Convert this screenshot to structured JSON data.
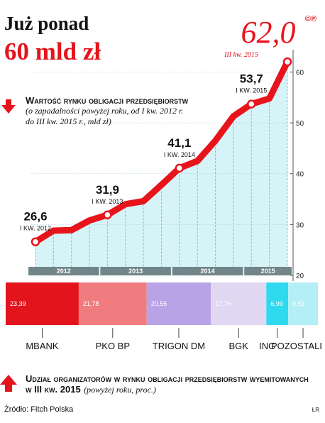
{
  "title": "Już ponad",
  "subtitle": "60 mld zł",
  "logo": "©℗",
  "source": "Źródło: Fitch Polska",
  "credit": "ŁR",
  "chart_data": [
    {
      "type": "line",
      "title": "Wartość rynku obligacji przedsiębiorstw",
      "subtitle": "(o zapadalności powyżej roku, od I kw. 2012 r. do III kw. 2015 r., mld zł)",
      "categories": [
        "I KW. 2012",
        null,
        null,
        null,
        "I KW. 2013",
        null,
        null,
        null,
        "I KW. 2014",
        null,
        null,
        null,
        "I KW. 2015",
        null,
        "III kw. 2015"
      ],
      "values": [
        26.6,
        28.8,
        28.9,
        30.8,
        31.9,
        34.0,
        34.6,
        37.8,
        41.1,
        42.5,
        46.5,
        51.3,
        53.7,
        54.8,
        62.0
      ],
      "value_labels": [
        "26,6",
        null,
        null,
        null,
        "31,9",
        null,
        null,
        null,
        "41,1",
        null,
        null,
        null,
        "53,7",
        null,
        "62,0"
      ],
      "color": "#e8141c",
      "fill": "#d6f3f7",
      "ylim": [
        20,
        63
      ],
      "yticks": [
        20,
        30,
        40,
        50,
        60
      ],
      "year_bands": [
        "2012",
        "2013",
        "2014",
        "2015"
      ]
    },
    {
      "type": "stacked-bar",
      "title": "Udział organizatorów w rynku obligacji przedsiębiorstw wyemitowanych w III kw. 2015",
      "subtitle": "(powyżej roku, proc.)",
      "categories": [
        "MBANK",
        "PKO BP",
        "TRIGON DM",
        "BGK",
        "ING",
        "POZOSTALI"
      ],
      "values": [
        23.39,
        21.78,
        20.55,
        17.76,
        6.99,
        9.53
      ],
      "value_labels": [
        "23,39",
        "21,78",
        "20,55",
        "17,76",
        "6,99",
        "9,53"
      ],
      "colors": [
        "#e3141c",
        "#f07c80",
        "#b9a3e6",
        "#e0d8f3",
        "#2fd9ee",
        "#b4eef6"
      ],
      "xlim": [
        0,
        100
      ]
    }
  ]
}
